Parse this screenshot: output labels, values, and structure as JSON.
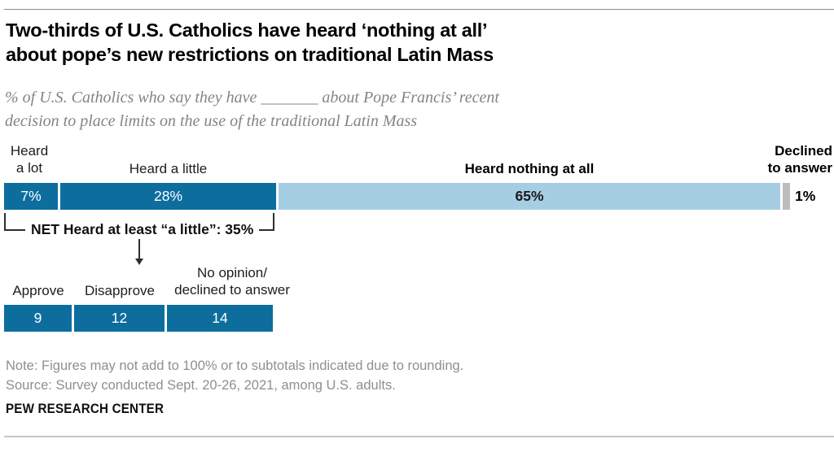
{
  "header": {
    "title": "Two-thirds of U.S. Catholics have heard ‘nothing at all’\nabout pope’s new restrictions on traditional Latin Mass",
    "subtitle": "% of U.S. Catholics who say they have _______ about Pope Francis’ recent\ndecision to place limits on the use of the traditional Latin Mass"
  },
  "colors": {
    "dark_blue": "#0d6e9e",
    "light_blue": "#a5cee3",
    "declined_gray": "#bdbdbd",
    "annotation_ink": "#2e2e2e"
  },
  "chart_data": [
    {
      "type": "bar",
      "orientation": "horizontal-stacked",
      "unit": "%",
      "xlim": [
        0,
        101
      ],
      "grid": false,
      "segments": [
        {
          "label": "Heard a lot",
          "label_lines": "Heard\na lot",
          "value": 7,
          "value_label": "7%",
          "color": "#0d6e9e",
          "value_color": "#ffffff",
          "value_bold": false
        },
        {
          "label": "Heard a little",
          "value": 28,
          "value_label": "28%",
          "color": "#0d6e9e",
          "value_color": "#ffffff",
          "value_bold": false
        },
        {
          "label": "Heard nothing at all",
          "value": 65,
          "value_label": "65%",
          "color": "#a5cee3",
          "value_color": "#1a1a1a",
          "value_bold": true
        },
        {
          "label": "Declined to answer",
          "label_lines": "Declined\nto answer",
          "value": 1,
          "value_label": "1%",
          "color": "#bdbdbd",
          "value_outside": true
        }
      ],
      "net": {
        "text": "NET Heard at least “a little”: 35%",
        "value": 35
      }
    },
    {
      "type": "bar",
      "orientation": "horizontal",
      "unit": "%",
      "grid": false,
      "segments": [
        {
          "label": "Approve",
          "value": 9,
          "value_label": "9",
          "color": "#0d6e9e",
          "value_color": "#ffffff",
          "value_bold": false
        },
        {
          "label": "Disapprove",
          "value": 12,
          "value_label": "12",
          "color": "#0d6e9e",
          "value_color": "#ffffff",
          "value_bold": false
        },
        {
          "label": "No opinion/\ndeclined to answer",
          "value": 14,
          "value_label": "14",
          "color": "#0d6e9e",
          "value_color": "#ffffff",
          "value_bold": false
        }
      ]
    }
  ],
  "footer": {
    "note": "Note: Figures may not add to 100% or to subtotals indicated due to rounding.",
    "source": "Source: Survey conducted Sept. 20-26, 2021, among U.S. adults.",
    "brand": "PEW RESEARCH CENTER"
  }
}
